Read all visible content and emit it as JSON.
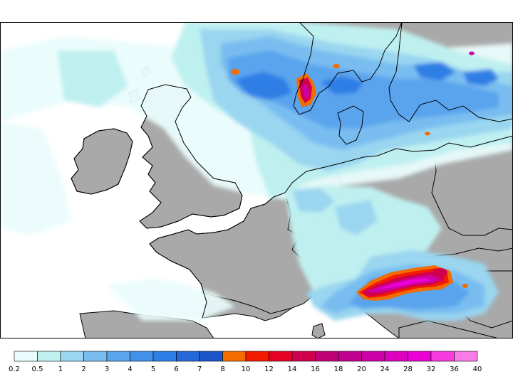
{
  "legend": {
    "colors": [
      "#eafcfc",
      "#bff0f0",
      "#9ad6f0",
      "#79bdf0",
      "#5aa4ee",
      "#4191ea",
      "#2f7ee6",
      "#2468dc",
      "#1b55c8",
      "#f36c00",
      "#f21b00",
      "#e50025",
      "#d1004e",
      "#bf0076",
      "#c0008e",
      "#cd00a6",
      "#dc00be",
      "#eb00d5",
      "#f73cdf",
      "#fa7ae8"
    ],
    "ticks": [
      "0.2",
      "0.5",
      "1",
      "2",
      "3",
      "4",
      "5",
      "6",
      "7",
      "8",
      "10",
      "12",
      "14",
      "16",
      "18",
      "20",
      "24",
      "28",
      "32",
      "36",
      "40"
    ]
  },
  "palette": {
    "land": "#a9a9a9",
    "sea": "#ffffff",
    "border": "#000000"
  }
}
